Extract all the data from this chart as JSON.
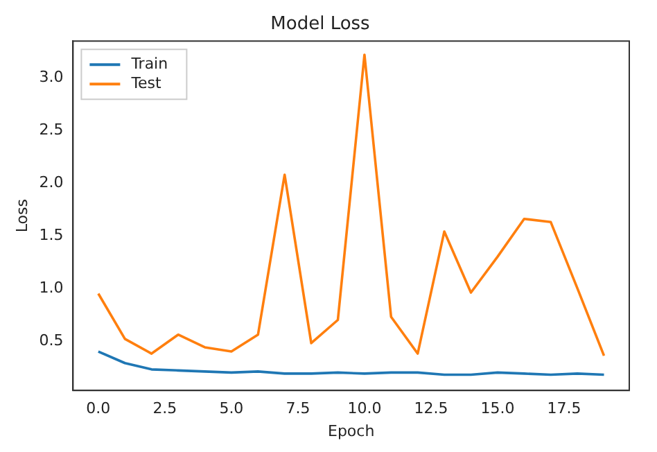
{
  "chart_data": {
    "type": "line",
    "title": "Model Loss",
    "xlabel": "Epoch",
    "ylabel": "Loss",
    "x": [
      0,
      1,
      2,
      3,
      4,
      5,
      6,
      7,
      8,
      9,
      10,
      11,
      12,
      13,
      14,
      15,
      16,
      17,
      18,
      19
    ],
    "series": [
      {
        "name": "Train",
        "color": "#1f77b4",
        "values": [
          0.4,
          0.29,
          0.23,
          0.22,
          0.21,
          0.2,
          0.21,
          0.19,
          0.19,
          0.2,
          0.19,
          0.2,
          0.2,
          0.18,
          0.18,
          0.2,
          0.19,
          0.18,
          0.19,
          0.18
        ]
      },
      {
        "name": "Test",
        "color": "#ff7f0e",
        "values": [
          0.95,
          0.52,
          0.38,
          0.56,
          0.44,
          0.4,
          0.56,
          2.08,
          0.48,
          0.7,
          3.22,
          0.73,
          0.38,
          1.54,
          0.96,
          1.3,
          1.66,
          1.63,
          1.0,
          0.36
        ]
      }
    ],
    "xlim": [
      -0.95,
      19.95
    ],
    "xticks": [
      {
        "value": 0,
        "label": "0.0"
      },
      {
        "value": 2.5,
        "label": "2.5"
      },
      {
        "value": 5,
        "label": "5.0"
      },
      {
        "value": 7.5,
        "label": "7.5"
      },
      {
        "value": 10,
        "label": "10.0"
      },
      {
        "value": 12.5,
        "label": "12.5"
      },
      {
        "value": 15,
        "label": "15.0"
      },
      {
        "value": 17.5,
        "label": "17.5"
      }
    ],
    "ylim": [
      0.03,
      3.35
    ],
    "yticks": [
      {
        "value": 0.5,
        "label": "0.5"
      },
      {
        "value": 1,
        "label": "1.0"
      },
      {
        "value": 1.5,
        "label": "1.5"
      },
      {
        "value": 2,
        "label": "2.0"
      },
      {
        "value": 2.5,
        "label": "2.5"
      },
      {
        "value": 3,
        "label": "3.0"
      }
    ],
    "legend": "top left",
    "grid": false,
    "marker": "none",
    "line_style": "solid"
  }
}
